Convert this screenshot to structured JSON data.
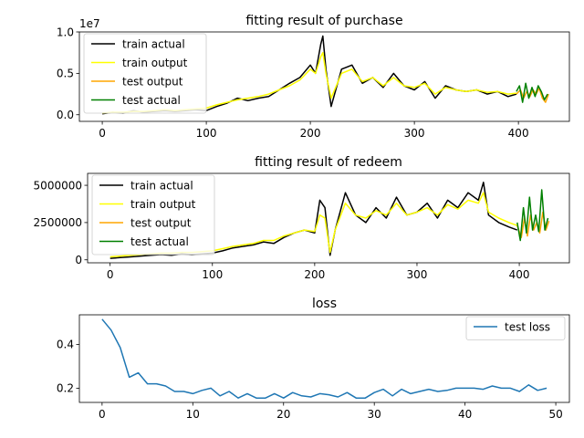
{
  "chart_data": [
    {
      "type": "line",
      "title": "fitting result of purchase",
      "xlabel": "",
      "ylabel": "",
      "scale_label": "1e7",
      "xlim": [
        -22,
        449
      ],
      "ylim": [
        -0.08,
        1.0
      ],
      "xticks": [
        0,
        100,
        200,
        300,
        400
      ],
      "yticks": [
        0.0,
        0.5,
        1.0
      ],
      "ytick_labels": [
        "0.0",
        "0.5",
        "1.0"
      ],
      "legend": "upper-left",
      "series": [
        {
          "name": "train actual",
          "color": "#000000",
          "x": [
            0,
            10,
            20,
            30,
            40,
            50,
            60,
            70,
            80,
            90,
            100,
            110,
            120,
            130,
            140,
            150,
            160,
            170,
            180,
            190,
            200,
            205,
            210,
            212,
            215,
            220,
            230,
            240,
            250,
            260,
            270,
            280,
            290,
            300,
            310,
            320,
            330,
            340,
            350,
            360,
            370,
            380,
            390,
            398
          ],
          "y": [
            0.01,
            0.03,
            0.02,
            0.05,
            0.03,
            0.04,
            0.05,
            0.04,
            0.05,
            0.06,
            0.05,
            0.1,
            0.14,
            0.2,
            0.17,
            0.2,
            0.22,
            0.3,
            0.38,
            0.45,
            0.6,
            0.5,
            0.85,
            0.95,
            0.55,
            0.1,
            0.55,
            0.6,
            0.38,
            0.45,
            0.33,
            0.5,
            0.35,
            0.3,
            0.4,
            0.2,
            0.35,
            0.3,
            0.28,
            0.3,
            0.25,
            0.28,
            0.22,
            0.25
          ]
        },
        {
          "name": "train output",
          "color": "#ffff00",
          "x": [
            0,
            10,
            20,
            30,
            40,
            50,
            60,
            70,
            80,
            90,
            100,
            110,
            120,
            130,
            140,
            150,
            160,
            170,
            180,
            190,
            200,
            205,
            210,
            212,
            215,
            220,
            230,
            240,
            250,
            260,
            270,
            280,
            290,
            300,
            310,
            320,
            330,
            340,
            350,
            360,
            370,
            380,
            390,
            398
          ],
          "y": [
            0.02,
            0.03,
            0.03,
            0.04,
            0.04,
            0.05,
            0.06,
            0.05,
            0.06,
            0.07,
            0.08,
            0.12,
            0.15,
            0.18,
            0.2,
            0.22,
            0.25,
            0.3,
            0.35,
            0.42,
            0.55,
            0.5,
            0.7,
            0.75,
            0.5,
            0.2,
            0.5,
            0.55,
            0.4,
            0.45,
            0.35,
            0.45,
            0.35,
            0.33,
            0.38,
            0.25,
            0.33,
            0.3,
            0.28,
            0.3,
            0.27,
            0.28,
            0.25,
            0.26
          ]
        },
        {
          "name": "test output",
          "color": "#ffa500",
          "x": [
            398,
            402,
            405,
            408,
            411,
            414,
            417,
            420,
            423,
            426,
            429
          ],
          "y": [
            0.25,
            0.3,
            0.2,
            0.28,
            0.22,
            0.3,
            0.25,
            0.32,
            0.2,
            0.15,
            0.25
          ]
        },
        {
          "name": "test actual",
          "color": "#008000",
          "x": [
            398,
            401,
            404,
            407,
            410,
            413,
            416,
            419,
            422,
            425,
            428
          ],
          "y": [
            0.28,
            0.35,
            0.15,
            0.38,
            0.2,
            0.33,
            0.22,
            0.35,
            0.28,
            0.18,
            0.25
          ]
        }
      ]
    },
    {
      "type": "line",
      "title": "fitting result of redeem",
      "xlabel": "",
      "ylabel": "",
      "xlim": [
        -22,
        449
      ],
      "ylim": [
        -200000,
        5800000
      ],
      "xticks": [
        0,
        100,
        200,
        300,
        400
      ],
      "yticks": [
        0,
        2500000,
        5000000
      ],
      "ytick_labels": [
        "0",
        "2500000",
        "5000000"
      ],
      "legend": "upper-left",
      "series": [
        {
          "name": "train actual",
          "color": "#000000",
          "x": [
            0,
            10,
            20,
            30,
            40,
            50,
            60,
            70,
            80,
            90,
            100,
            110,
            120,
            130,
            140,
            150,
            160,
            170,
            180,
            190,
            200,
            205,
            210,
            215,
            220,
            230,
            240,
            250,
            260,
            270,
            280,
            290,
            300,
            310,
            320,
            330,
            340,
            350,
            360,
            365,
            370,
            380,
            390,
            398
          ],
          "y": [
            100000,
            150000,
            200000,
            250000,
            300000,
            350000,
            300000,
            400000,
            350000,
            400000,
            450000,
            600000,
            800000,
            900000,
            1000000,
            1200000,
            1100000,
            1500000,
            1800000,
            2000000,
            1800000,
            4000000,
            3500000,
            300000,
            2000000,
            4500000,
            3000000,
            2500000,
            3500000,
            2800000,
            4200000,
            3000000,
            3200000,
            3800000,
            2800000,
            4000000,
            3500000,
            4500000,
            4000000,
            5200000,
            3000000,
            2500000,
            2200000,
            2000000
          ]
        },
        {
          "name": "train output",
          "color": "#ffff00",
          "x": [
            0,
            10,
            20,
            30,
            40,
            50,
            60,
            70,
            80,
            90,
            100,
            110,
            120,
            130,
            140,
            150,
            160,
            170,
            180,
            190,
            200,
            205,
            210,
            215,
            220,
            230,
            240,
            250,
            260,
            270,
            280,
            290,
            300,
            310,
            320,
            330,
            340,
            350,
            360,
            365,
            370,
            380,
            390,
            398
          ],
          "y": [
            200000,
            250000,
            300000,
            350000,
            400000,
            450000,
            450000,
            500000,
            500000,
            550000,
            600000,
            750000,
            900000,
            1000000,
            1100000,
            1300000,
            1300000,
            1600000,
            1800000,
            2000000,
            1900000,
            3000000,
            2800000,
            500000,
            2000000,
            3800000,
            3000000,
            2800000,
            3300000,
            3000000,
            3800000,
            3000000,
            3200000,
            3500000,
            3000000,
            3700000,
            3400000,
            4000000,
            3800000,
            4500000,
            3200000,
            2800000,
            2500000,
            2300000
          ]
        },
        {
          "name": "test output",
          "color": "#ffa500",
          "x": [
            398,
            402,
            405,
            408,
            411,
            414,
            417,
            420,
            423,
            426,
            429
          ],
          "y": [
            2300000,
            1500000,
            2800000,
            1600000,
            3000000,
            2000000,
            2500000,
            1800000,
            3200000,
            2000000,
            2600000
          ]
        },
        {
          "name": "test actual",
          "color": "#008000",
          "x": [
            398,
            401,
            404,
            407,
            410,
            413,
            416,
            419,
            422,
            425,
            428
          ],
          "y": [
            2500000,
            1300000,
            3500000,
            1800000,
            4200000,
            2000000,
            3000000,
            1900000,
            4700000,
            2000000,
            2800000
          ]
        }
      ]
    },
    {
      "type": "line",
      "title": "loss",
      "xlabel": "",
      "ylabel": "",
      "xlim": [
        -2.5,
        51.5
      ],
      "ylim": [
        0.135,
        0.535
      ],
      "xticks": [
        0,
        10,
        20,
        30,
        40,
        50
      ],
      "yticks": [
        0.2,
        0.4
      ],
      "ytick_labels": [
        "0.2",
        "0.4"
      ],
      "legend": "upper-right",
      "series": [
        {
          "name": "test loss",
          "color": "#1f77b4",
          "x": [
            0,
            1,
            2,
            3,
            4,
            5,
            6,
            7,
            8,
            9,
            10,
            11,
            12,
            13,
            14,
            15,
            16,
            17,
            18,
            19,
            20,
            21,
            22,
            23,
            24,
            25,
            26,
            27,
            28,
            29,
            30,
            31,
            32,
            33,
            34,
            35,
            36,
            37,
            38,
            39,
            40,
            41,
            42,
            43,
            44,
            45,
            46,
            47,
            48,
            49
          ],
          "y": [
            0.515,
            0.465,
            0.385,
            0.25,
            0.27,
            0.22,
            0.22,
            0.21,
            0.185,
            0.185,
            0.175,
            0.19,
            0.2,
            0.165,
            0.185,
            0.155,
            0.175,
            0.155,
            0.155,
            0.175,
            0.155,
            0.18,
            0.165,
            0.16,
            0.175,
            0.17,
            0.16,
            0.18,
            0.155,
            0.155,
            0.18,
            0.195,
            0.165,
            0.195,
            0.175,
            0.185,
            0.195,
            0.185,
            0.19,
            0.2,
            0.2,
            0.2,
            0.195,
            0.21,
            0.2,
            0.2,
            0.185,
            0.215,
            0.19,
            0.2
          ]
        }
      ]
    }
  ]
}
